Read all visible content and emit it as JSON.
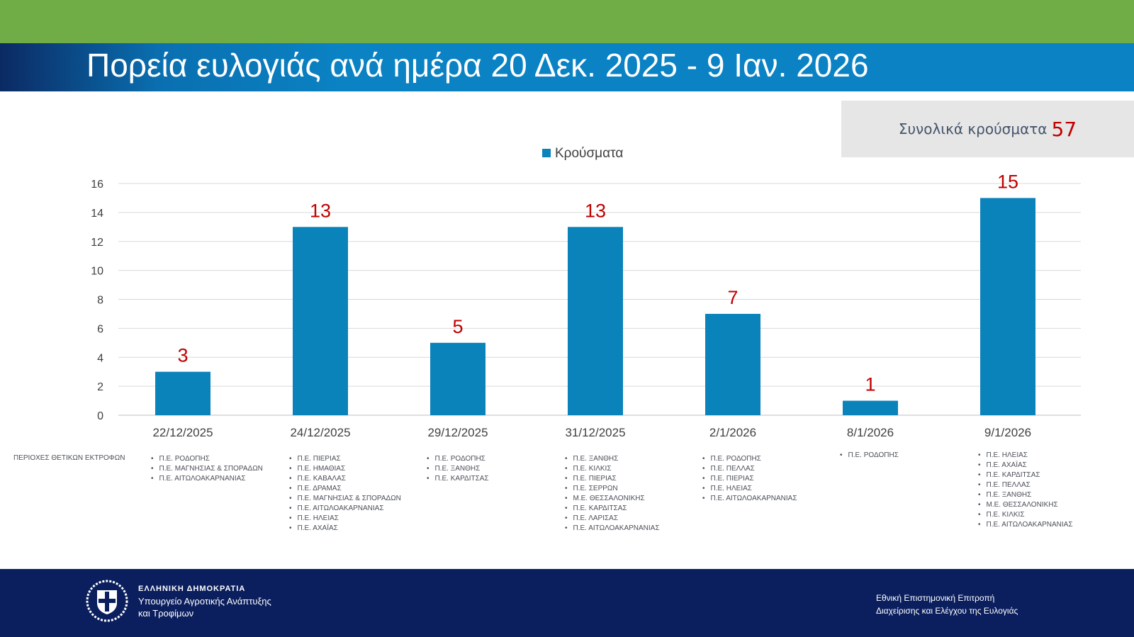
{
  "header": {
    "title": "Πορεία ευλογιάς ανά ημέρα 20 Δεκ. 2025 - 9 Ιαν. 2026",
    "top_band_color": "#70ad47",
    "banner_color": "#0a82c3"
  },
  "total": {
    "label": "Συνολικά κρούσματα",
    "value": "57"
  },
  "chart_data": {
    "type": "bar",
    "legend": "Κρούσματα",
    "legend_position": "top",
    "categories": [
      "22/12/2025",
      "24/12/2025",
      "29/12/2025",
      "31/12/2025",
      "2/1/2026",
      "8/1/2026",
      "9/1/2026"
    ],
    "series": [
      {
        "name": "Κρούσματα",
        "values": [
          3,
          13,
          5,
          13,
          7,
          1,
          15
        ],
        "color": "#0a82ba"
      }
    ],
    "data_label_color": "#c00000",
    "ylim": [
      0,
      16
    ],
    "yticks": [
      0,
      2,
      4,
      6,
      8,
      10,
      12,
      14,
      16
    ],
    "grid": true
  },
  "regions": {
    "label": "ΠΕΡΙΟΧΕΣ ΘΕΤΙΚΩΝ ΕΚΤΡΟΦΩΝ",
    "lists": [
      [
        "Π.Ε. ΡΟΔΟΠΗΣ",
        "Π.Ε. ΜΑΓΝΗΣΙΑΣ & ΣΠΟΡΑΔΩΝ",
        "Π.Ε. ΑΙΤΩΛΟΑΚΑΡΝΑΝΙΑΣ"
      ],
      [
        "Π.Ε. ΠΙΕΡΙΑΣ",
        "Π.Ε. ΗΜΑΘΙΑΣ",
        "Π.Ε. ΚΑΒΑΛΑΣ",
        "Π.Ε. ΔΡΑΜΑΣ",
        "Π.Ε.  ΜΑΓΝΗΣΙΑΣ & ΣΠΟΡΑΔΩΝ",
        "Π.Ε. ΑΙΤΩΛΟΑΚΑΡΝΑΝΙΑΣ",
        "Π.Ε. ΗΛΕΙΑΣ",
        "Π.Ε. ΑΧΑΪΑΣ"
      ],
      [
        "Π.Ε. ΡΟΔΟΠΗΣ",
        "Π.Ε. ΞΑΝΘΗΣ",
        "Π.Ε. ΚΑΡΔΙΤΣΑΣ"
      ],
      [
        "Π.Ε. ΞΑΝΘΗΣ",
        "Π.Ε. ΚΙΛΚΙΣ",
        "Π.Ε. ΠΙΕΡΙΑΣ",
        "Π.Ε. ΣΕΡΡΩΝ",
        "Μ.Ε. ΘΕΣΣΑΛΟΝΙΚΗΣ",
        "Π.Ε. ΚΑΡΔΙΤΣΑΣ",
        "Π.Ε. ΛΑΡΙΣΑΣ",
        "Π.Ε. ΑΙΤΩΛΟΑΚΑΡΝΑΝΙΑΣ"
      ],
      [
        "Π.Ε. ΡΟΔΟΠΗΣ",
        "Π.Ε. ΠΕΛΛΑΣ",
        "Π.Ε. ΠΙΕΡΙΑΣ",
        "Π.Ε. ΗΛΕΙΑΣ",
        "Π.Ε. ΑΙΤΩΛΟΑΚΑΡΝΑΝΙΑΣ"
      ],
      [
        "Π.Ε. ΡΟΔΟΠΗΣ"
      ],
      [
        "Π.Ε. ΗΛΕΙΑΣ",
        "Π.Ε. ΑΧΑΪΑΣ",
        "Π.Ε. ΚΑΡΔΙΤΣΑΣ",
        "Π.Ε. ΠΕΛΛΑΣ",
        "Π.Ε. ΞΑΝΘΗΣ",
        "Μ.Ε. ΘΕΣΣΑΛΟΝΙΚΗΣ",
        "Π.Ε. ΚΙΛΚΙΣ",
        "Π.Ε. ΑΙΤΩΛΟΑΚΑΡΝΑΝΙΑΣ"
      ]
    ]
  },
  "footer": {
    "republic": "ΕΛΛΗΝΙΚΗ ΔΗΜΟΚΡΑΤΙΑ",
    "ministry_line1": "Υπουργείο Αγροτικής Ανάπτυξης",
    "ministry_line2": "και Τροφίμων",
    "committee_line1": "Εθνική Επιστημονική Επιτροπή",
    "committee_line2": "Διαχείρισης και Ελέγχου της Ευλογιάς",
    "background": "#0b1f5e"
  }
}
